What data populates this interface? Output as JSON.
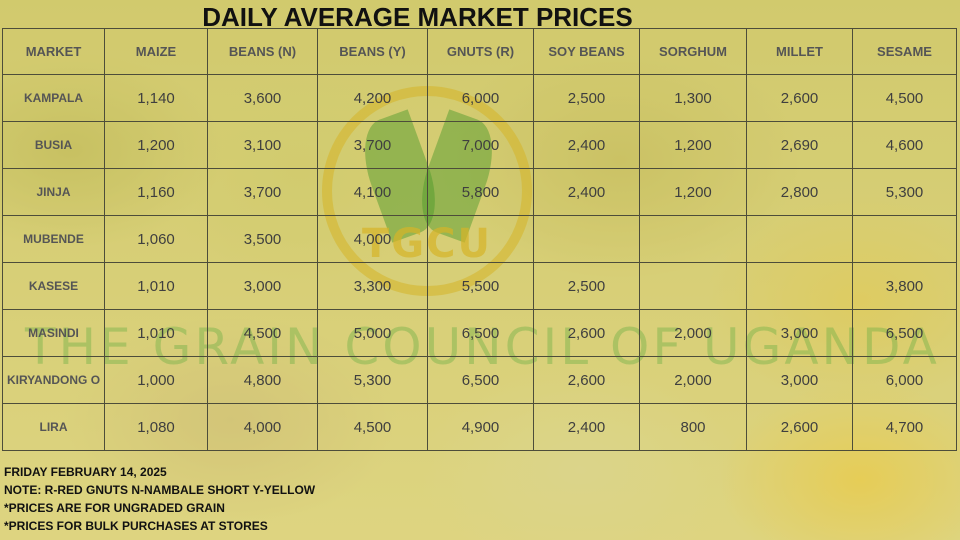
{
  "title": "DAILY AVERAGE MARKET PRICES",
  "watermark_text": "THE GRAIN COUNCIL OF UGANDA",
  "logo_text": "TGCU",
  "colors": {
    "overlay": "#e6df58",
    "logo_green": "#46962a",
    "logo_gold": "#d6b428",
    "grid": "#4d4d3a"
  },
  "table": {
    "columns": [
      "MARKET",
      "MAIZE",
      "BEANS (N)",
      "BEANS (Y)",
      "GNUTS (R)",
      "SOY BEANS",
      "SORGHUM",
      "MILLET",
      "SESAME"
    ],
    "rows": [
      [
        "KAMPALA",
        "1,140",
        "3,600",
        "4,200",
        "6,000",
        "2,500",
        "1,300",
        "2,600",
        "4,500"
      ],
      [
        "BUSIA",
        "1,200",
        "3,100",
        "3,700",
        "7,000",
        "2,400",
        "1,200",
        "2,690",
        "4,600"
      ],
      [
        "JINJA",
        "1,160",
        "3,700",
        "4,100",
        "5,800",
        "2,400",
        "1,200",
        "2,800",
        "5,300"
      ],
      [
        "MUBENDE",
        "1,060",
        "3,500",
        "4,000",
        "",
        "",
        "",
        "",
        ""
      ],
      [
        "KASESE",
        "1,010",
        "3,000",
        "3,300",
        "5,500",
        "2,500",
        "",
        "",
        "3,800"
      ],
      [
        "MASINDI",
        "1,010",
        "4,500",
        "5,000",
        "6,500",
        "2,600",
        "2,000",
        "3,000",
        "6,500"
      ],
      [
        "KIRYANDONG O",
        "1,000",
        "4,800",
        "5,300",
        "6,500",
        "2,600",
        "2,000",
        "3,000",
        "6,000"
      ],
      [
        "LIRA",
        "1,080",
        "4,000",
        "4,500",
        "4,900",
        "2,400",
        "800",
        "2,600",
        "4,700"
      ]
    ]
  },
  "notes": [
    "FRIDAY FEBRUARY 14, 2025",
    "NOTE: R-RED GNUTS  N-NAMBALE SHORT  Y-YELLOW",
    "*PRICES ARE FOR UNGRADED GRAIN",
    "*PRICES FOR BULK PURCHASES AT STORES"
  ]
}
